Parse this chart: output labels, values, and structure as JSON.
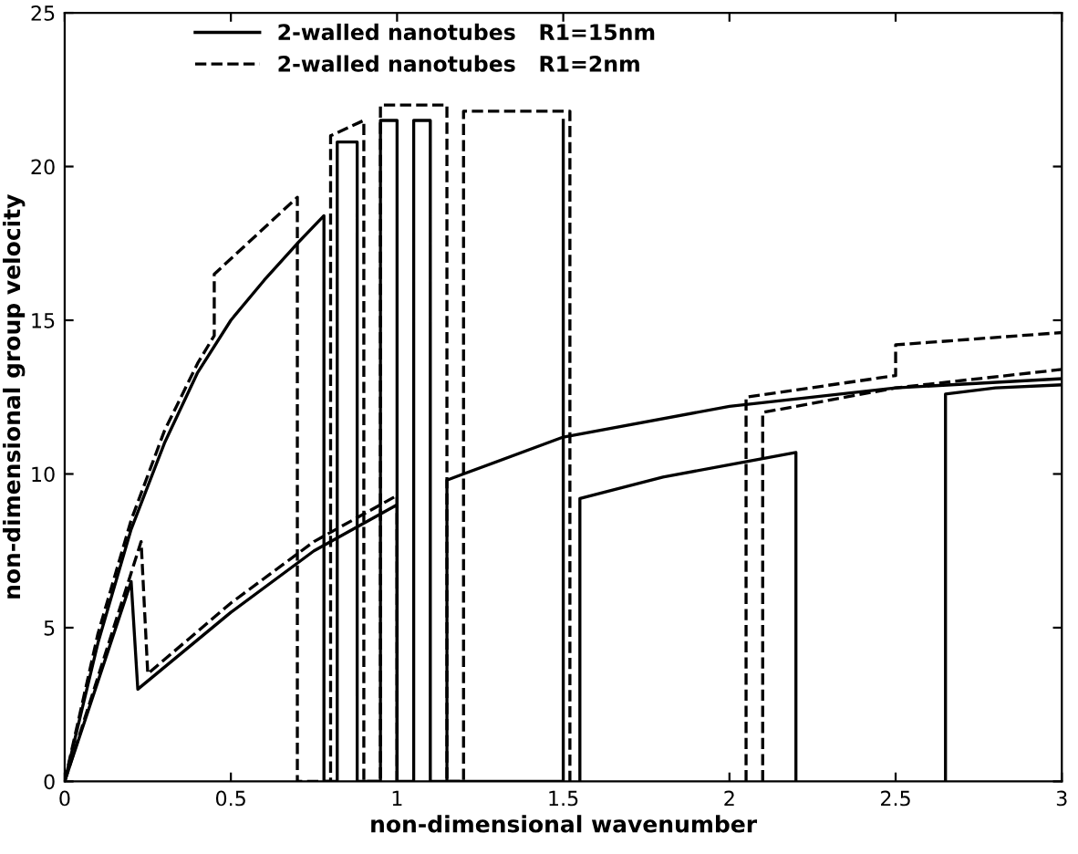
{
  "chart_data": {
    "type": "line",
    "xlabel": "non-dimensional wavenumber",
    "ylabel": "non-dimensional group velocity",
    "xlim": [
      0,
      3
    ],
    "ylim": [
      0,
      25
    ],
    "xticks": [
      0,
      0.5,
      1,
      1.5,
      2,
      2.5,
      3
    ],
    "yticks": [
      0,
      5,
      10,
      15,
      20,
      25
    ],
    "grid": false,
    "legend": "top left",
    "marker": "none",
    "series": [
      {
        "name": "2-walled nanotubes   R1=15nm",
        "color": "#000000",
        "line_style": "solid",
        "x": [
          0,
          0.1,
          0.2,
          0.3,
          0.4,
          0.5,
          0.6,
          0.7,
          0.78,
          0.78,
          0.82,
          0.82,
          0.88,
          0.88,
          0.95,
          0.95,
          1.0,
          1.0,
          1.05,
          1.05,
          1.1,
          1.1,
          1.5,
          1.5
        ],
        "values": [
          0,
          4.5,
          8.2,
          11,
          13.3,
          15,
          16.3,
          17.5,
          18.4,
          0,
          0,
          20.8,
          20.8,
          0,
          0,
          21.5,
          21.5,
          0,
          0,
          21.5,
          21.5,
          0,
          0,
          21.5
        ]
      },
      {
        "color": "#000000",
        "line_style": "solid",
        "x": [
          0,
          0.2,
          0.22,
          0.5,
          0.75,
          1.0,
          1.0
        ],
        "values": [
          0,
          6.5,
          3,
          5.5,
          7.5,
          9,
          0
        ]
      },
      {
        "color": "#000000",
        "line_style": "solid",
        "x": [
          1.15,
          1.15,
          1.5,
          2.0,
          2.5,
          3.0
        ],
        "values": [
          0,
          9.8,
          11.2,
          12.2,
          12.8,
          13.1
        ]
      },
      {
        "color": "#000000",
        "line_style": "solid",
        "x": [
          1.55,
          1.55,
          1.8,
          2.0,
          2.2,
          2.2
        ],
        "values": [
          0,
          9.2,
          9.9,
          10.3,
          10.7,
          0
        ]
      },
      {
        "color": "#000000",
        "line_style": "solid",
        "x": [
          2.65,
          2.65,
          2.8,
          3.0
        ],
        "values": [
          0,
          12.6,
          12.8,
          12.9
        ]
      },
      {
        "name": "2-walled nanotubes   R1=2nm",
        "color": "#000000",
        "line_style": "dashed",
        "x": [
          0,
          0.1,
          0.2,
          0.3,
          0.4,
          0.45,
          0.45,
          0.55,
          0.7,
          0.7,
          0.8,
          0.8,
          0.9,
          0.9,
          0.95,
          0.95,
          1.15,
          1.15,
          1.2,
          1.2,
          1.52,
          1.52
        ],
        "values": [
          0,
          4.8,
          8.5,
          11.4,
          13.6,
          14.5,
          16.5,
          17.5,
          19,
          0,
          0,
          21,
          21.5,
          0,
          0,
          22,
          22,
          0,
          0,
          21.8,
          21.8,
          0
        ]
      },
      {
        "color": "#000000",
        "line_style": "dashed",
        "x": [
          0,
          0.23,
          0.25,
          0.5,
          0.75,
          1.0,
          1.0
        ],
        "values": [
          0,
          7.8,
          3.5,
          5.8,
          7.8,
          9.3,
          0
        ]
      },
      {
        "color": "#000000",
        "line_style": "dashed",
        "x": [
          2.05,
          2.05,
          2.5,
          2.5,
          3.0
        ],
        "values": [
          0,
          12.5,
          13.2,
          14.2,
          14.6
        ]
      },
      {
        "color": "#000000",
        "line_style": "dashed",
        "x": [
          2.1,
          2.1,
          2.5,
          3.0
        ],
        "values": [
          0,
          12,
          12.8,
          13.4
        ]
      }
    ]
  }
}
